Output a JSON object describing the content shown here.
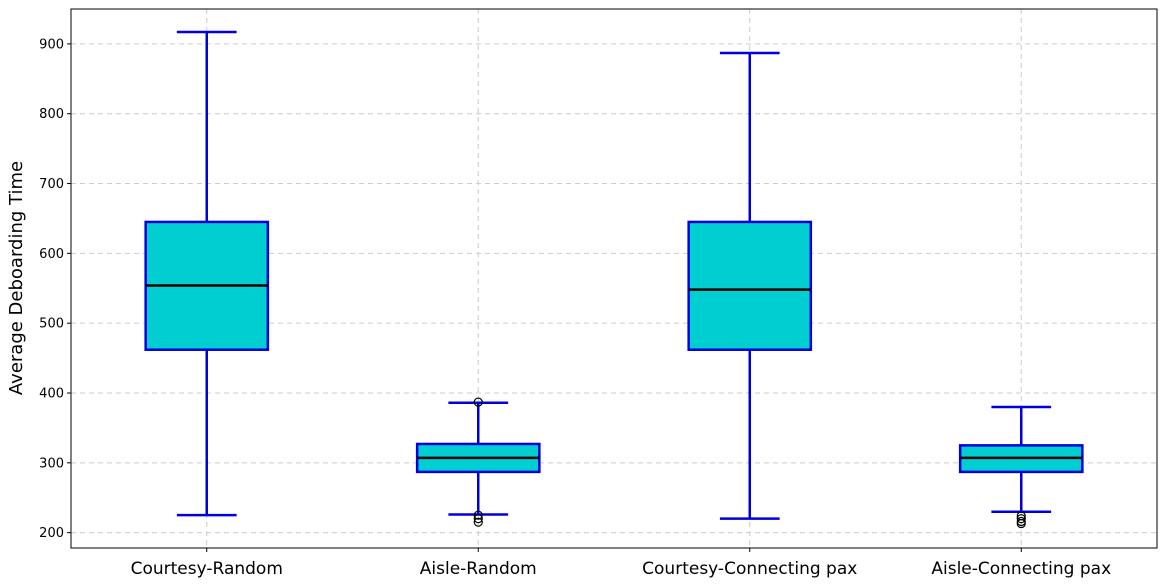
{
  "chart_data": {
    "type": "boxplot",
    "title": "",
    "xlabel": "",
    "ylabel": "Average Deboarding Time",
    "ylim": [
      178,
      950
    ],
    "yticks": [
      200,
      300,
      400,
      500,
      600,
      700,
      800,
      900
    ],
    "grid": true,
    "legend": "none",
    "colors": {
      "box_fill": "#00CED1",
      "box_edge": "#0000DD",
      "median": "#000000",
      "grid": "#cccccc",
      "flier": "#000000"
    },
    "categories": [
      "Courtesy-Random",
      "Aisle-Random",
      "Courtesy-Connecting pax",
      "Aisle-Connecting pax"
    ],
    "boxes": [
      {
        "whisker_low": 225,
        "q1": 462,
        "median": 554,
        "q3": 645,
        "whisker_high": 917,
        "fliers": []
      },
      {
        "whisker_low": 226,
        "q1": 287,
        "median": 307,
        "q3": 327,
        "whisker_high": 386,
        "fliers": [
          387,
          225,
          220,
          215
        ]
      },
      {
        "whisker_low": 220,
        "q1": 462,
        "median": 548,
        "q3": 645,
        "whisker_high": 887,
        "fliers": []
      },
      {
        "whisker_low": 230,
        "q1": 287,
        "median": 307,
        "q3": 325,
        "whisker_high": 380,
        "fliers": [
          224,
          220,
          216,
          213
        ]
      }
    ]
  }
}
